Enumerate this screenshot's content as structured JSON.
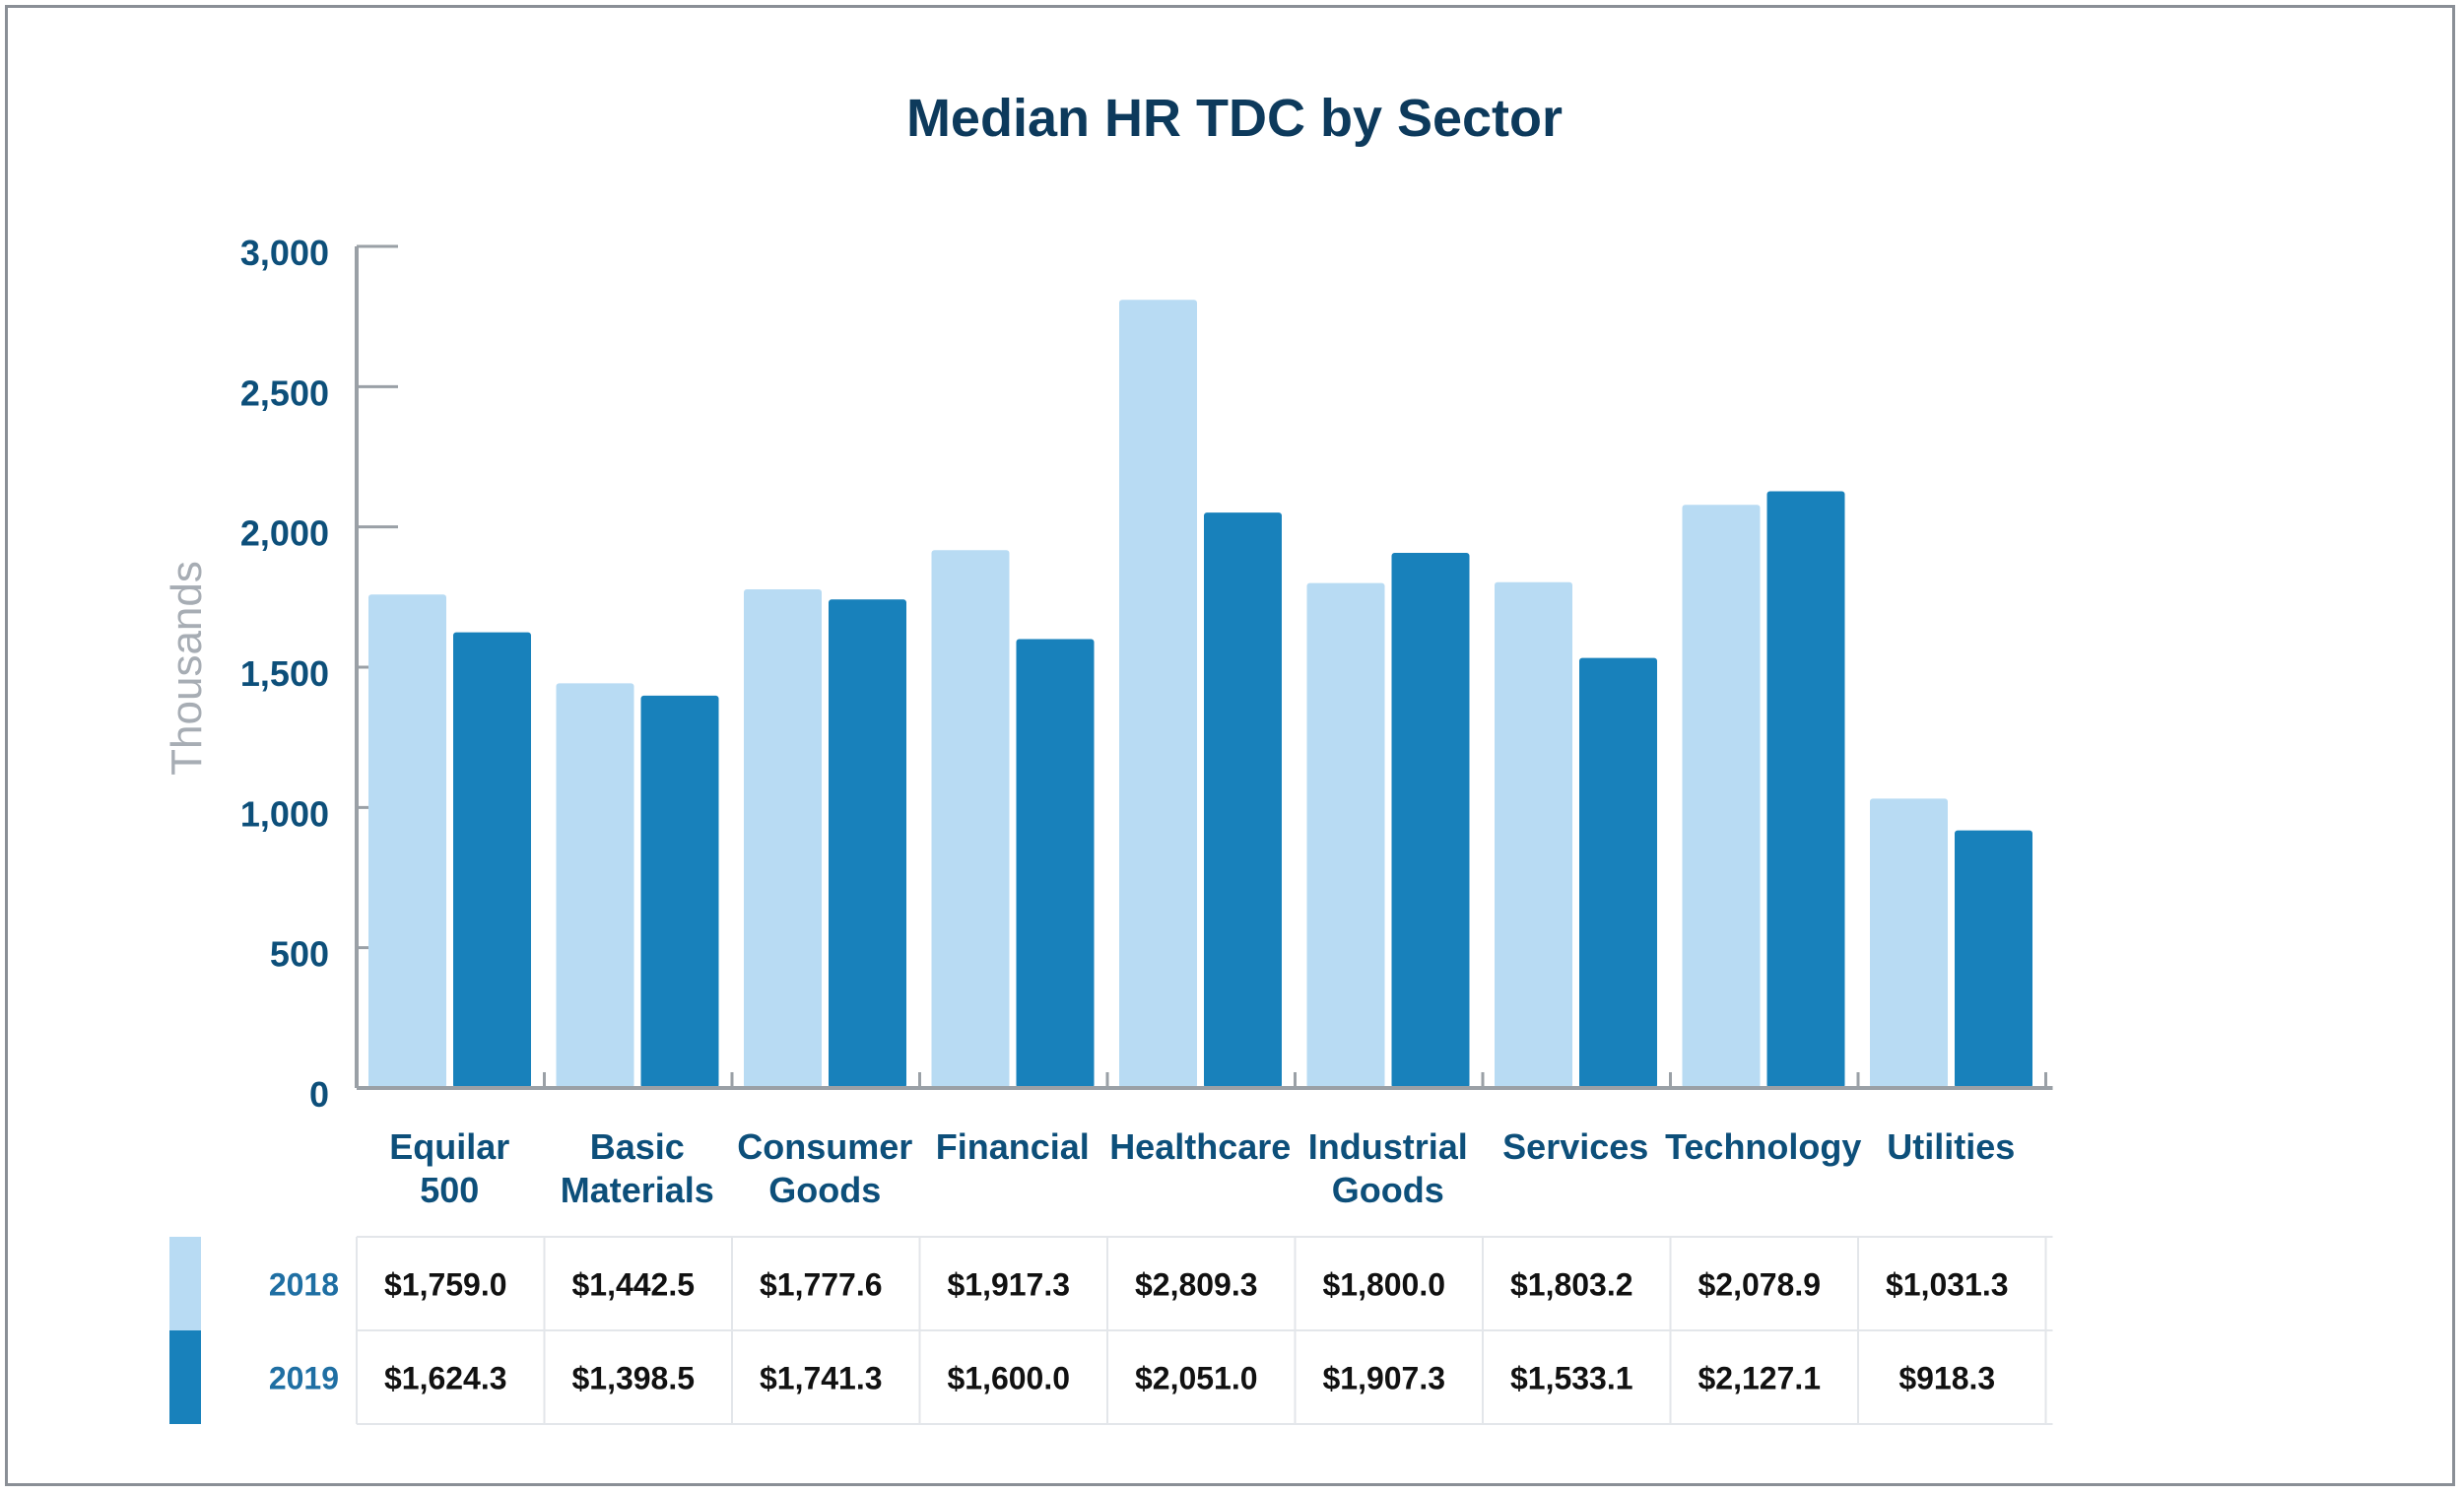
{
  "chart_data": {
    "type": "bar",
    "title": "Median HR TDC by Sector",
    "ylabel": "Thousands",
    "ylim": [
      0,
      3000
    ],
    "yticks": [
      "0",
      "500",
      "1,000",
      "1,500",
      "2,000",
      "2,500",
      "3,000"
    ],
    "categories": [
      [
        "Equilar",
        "500"
      ],
      [
        "Basic",
        "Materials"
      ],
      [
        "Consumer",
        "Goods"
      ],
      [
        "Financial"
      ],
      [
        "Healthcare"
      ],
      [
        "Industrial",
        "Goods"
      ],
      [
        "Services"
      ],
      [
        "Technology"
      ],
      [
        "Utilities"
      ]
    ],
    "series": [
      {
        "name": "2018",
        "color": "#b8dbf3",
        "values": [
          1759.0,
          1442.5,
          1777.6,
          1917.3,
          2809.3,
          1800.0,
          1803.2,
          2078.9,
          1031.3
        ],
        "labels": [
          "$1,759.0",
          "$1,442.5",
          "$1,777.6",
          "$1,917.3",
          "$2,809.3",
          "$1,800.0",
          "$1,803.2",
          "$2,078.9",
          "$1,031.3"
        ]
      },
      {
        "name": "2019",
        "color": "#1881bb",
        "values": [
          1624.3,
          1398.5,
          1741.3,
          1600.0,
          2051.0,
          1907.3,
          1533.1,
          2127.1,
          918.3
        ],
        "labels": [
          "$1,624.3",
          "$1,398.5",
          "$1,741.3",
          "$1,600.0",
          "$2,051.0",
          "$1,907.3",
          "$1,533.1",
          "$2,127.1",
          "$918.3"
        ]
      }
    ],
    "grid": false,
    "legend": "data-table-below"
  }
}
